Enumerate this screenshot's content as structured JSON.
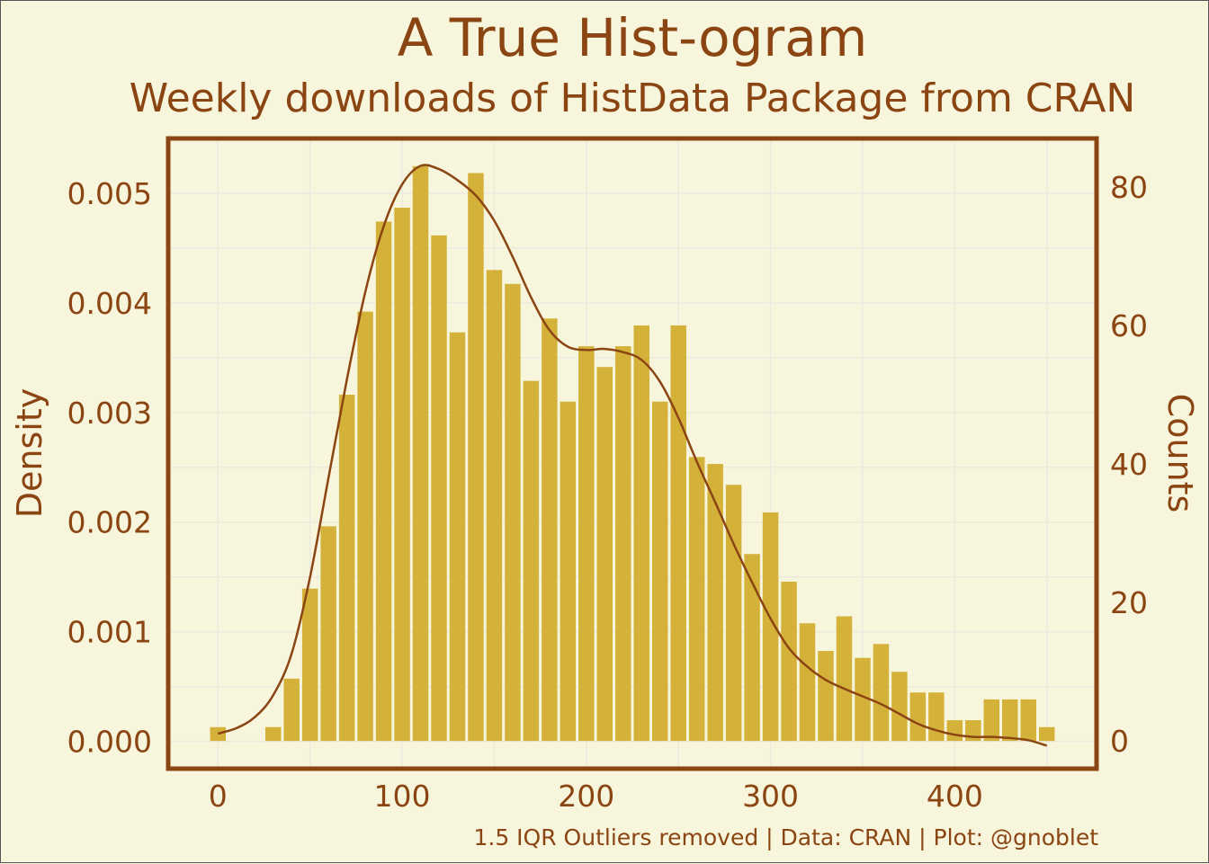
{
  "chart_data": {
    "type": "bar",
    "title": "A True Hist-ogram",
    "subtitle": "Weekly downloads of HistData Package from CRAN",
    "caption": "1.5 IQR Outliers removed | Data: CRAN | Plot: @gnoblet",
    "ylabel": "Density",
    "y2label": "Counts",
    "xlim": [
      -27,
      477
    ],
    "ylim_density": [
      -0.00025,
      0.0055
    ],
    "ylim_counts": [
      -4,
      87
    ],
    "x_ticks": [
      0,
      100,
      200,
      300,
      400
    ],
    "y_ticks": [
      "0.000",
      "0.001",
      "0.002",
      "0.003",
      "0.004",
      "0.005"
    ],
    "y2_ticks": [
      0,
      20,
      40,
      60,
      80
    ],
    "bin_width": 10,
    "bin_centers": [
      0,
      30,
      40,
      50,
      60,
      70,
      80,
      90,
      100,
      110,
      120,
      130,
      140,
      150,
      160,
      170,
      180,
      190,
      200,
      210,
      220,
      230,
      240,
      250,
      260,
      270,
      280,
      290,
      300,
      310,
      320,
      330,
      340,
      350,
      360,
      370,
      380,
      390,
      400,
      410,
      420,
      430,
      440,
      450
    ],
    "counts": [
      2,
      2,
      9,
      22,
      31,
      50,
      62,
      75,
      77,
      83,
      73,
      59,
      82,
      68,
      66,
      52,
      61,
      49,
      57,
      54,
      57,
      60,
      49,
      60,
      41,
      40,
      37,
      27,
      33,
      23,
      17,
      13,
      18,
      12,
      14,
      10,
      7,
      7,
      3,
      3,
      6,
      6,
      6,
      2
    ],
    "density_curve": {
      "x": [
        0,
        10,
        20,
        30,
        40,
        50,
        60,
        70,
        80,
        90,
        100,
        110,
        120,
        130,
        140,
        150,
        160,
        170,
        180,
        190,
        200,
        210,
        220,
        230,
        240,
        250,
        260,
        270,
        280,
        290,
        300,
        310,
        320,
        330,
        340,
        350,
        360,
        370,
        380,
        390,
        400,
        410,
        420,
        430,
        440,
        450
      ],
      "y": [
        7e-05,
        0.00012,
        0.00022,
        0.00042,
        0.0008,
        0.0015,
        0.0024,
        0.0033,
        0.0041,
        0.0047,
        0.00508,
        0.00525,
        0.00522,
        0.00512,
        0.00498,
        0.00475,
        0.00442,
        0.00405,
        0.00375,
        0.0036,
        0.00357,
        0.00358,
        0.00355,
        0.00348,
        0.00328,
        0.00295,
        0.00255,
        0.00218,
        0.0018,
        0.00145,
        0.00112,
        0.00085,
        0.00068,
        0.00056,
        0.00048,
        0.00041,
        0.00034,
        0.00025,
        0.00016,
        0.0001,
        6e-05,
        4e-05,
        4e-05,
        3e-05,
        1e-05,
        -4e-05
      ]
    },
    "grid": true,
    "colors": {
      "bars": "#d4b23a",
      "line": "#8b4513",
      "text": "#8b4513",
      "background": "#f7f5dc",
      "grid": "#eceade"
    }
  }
}
